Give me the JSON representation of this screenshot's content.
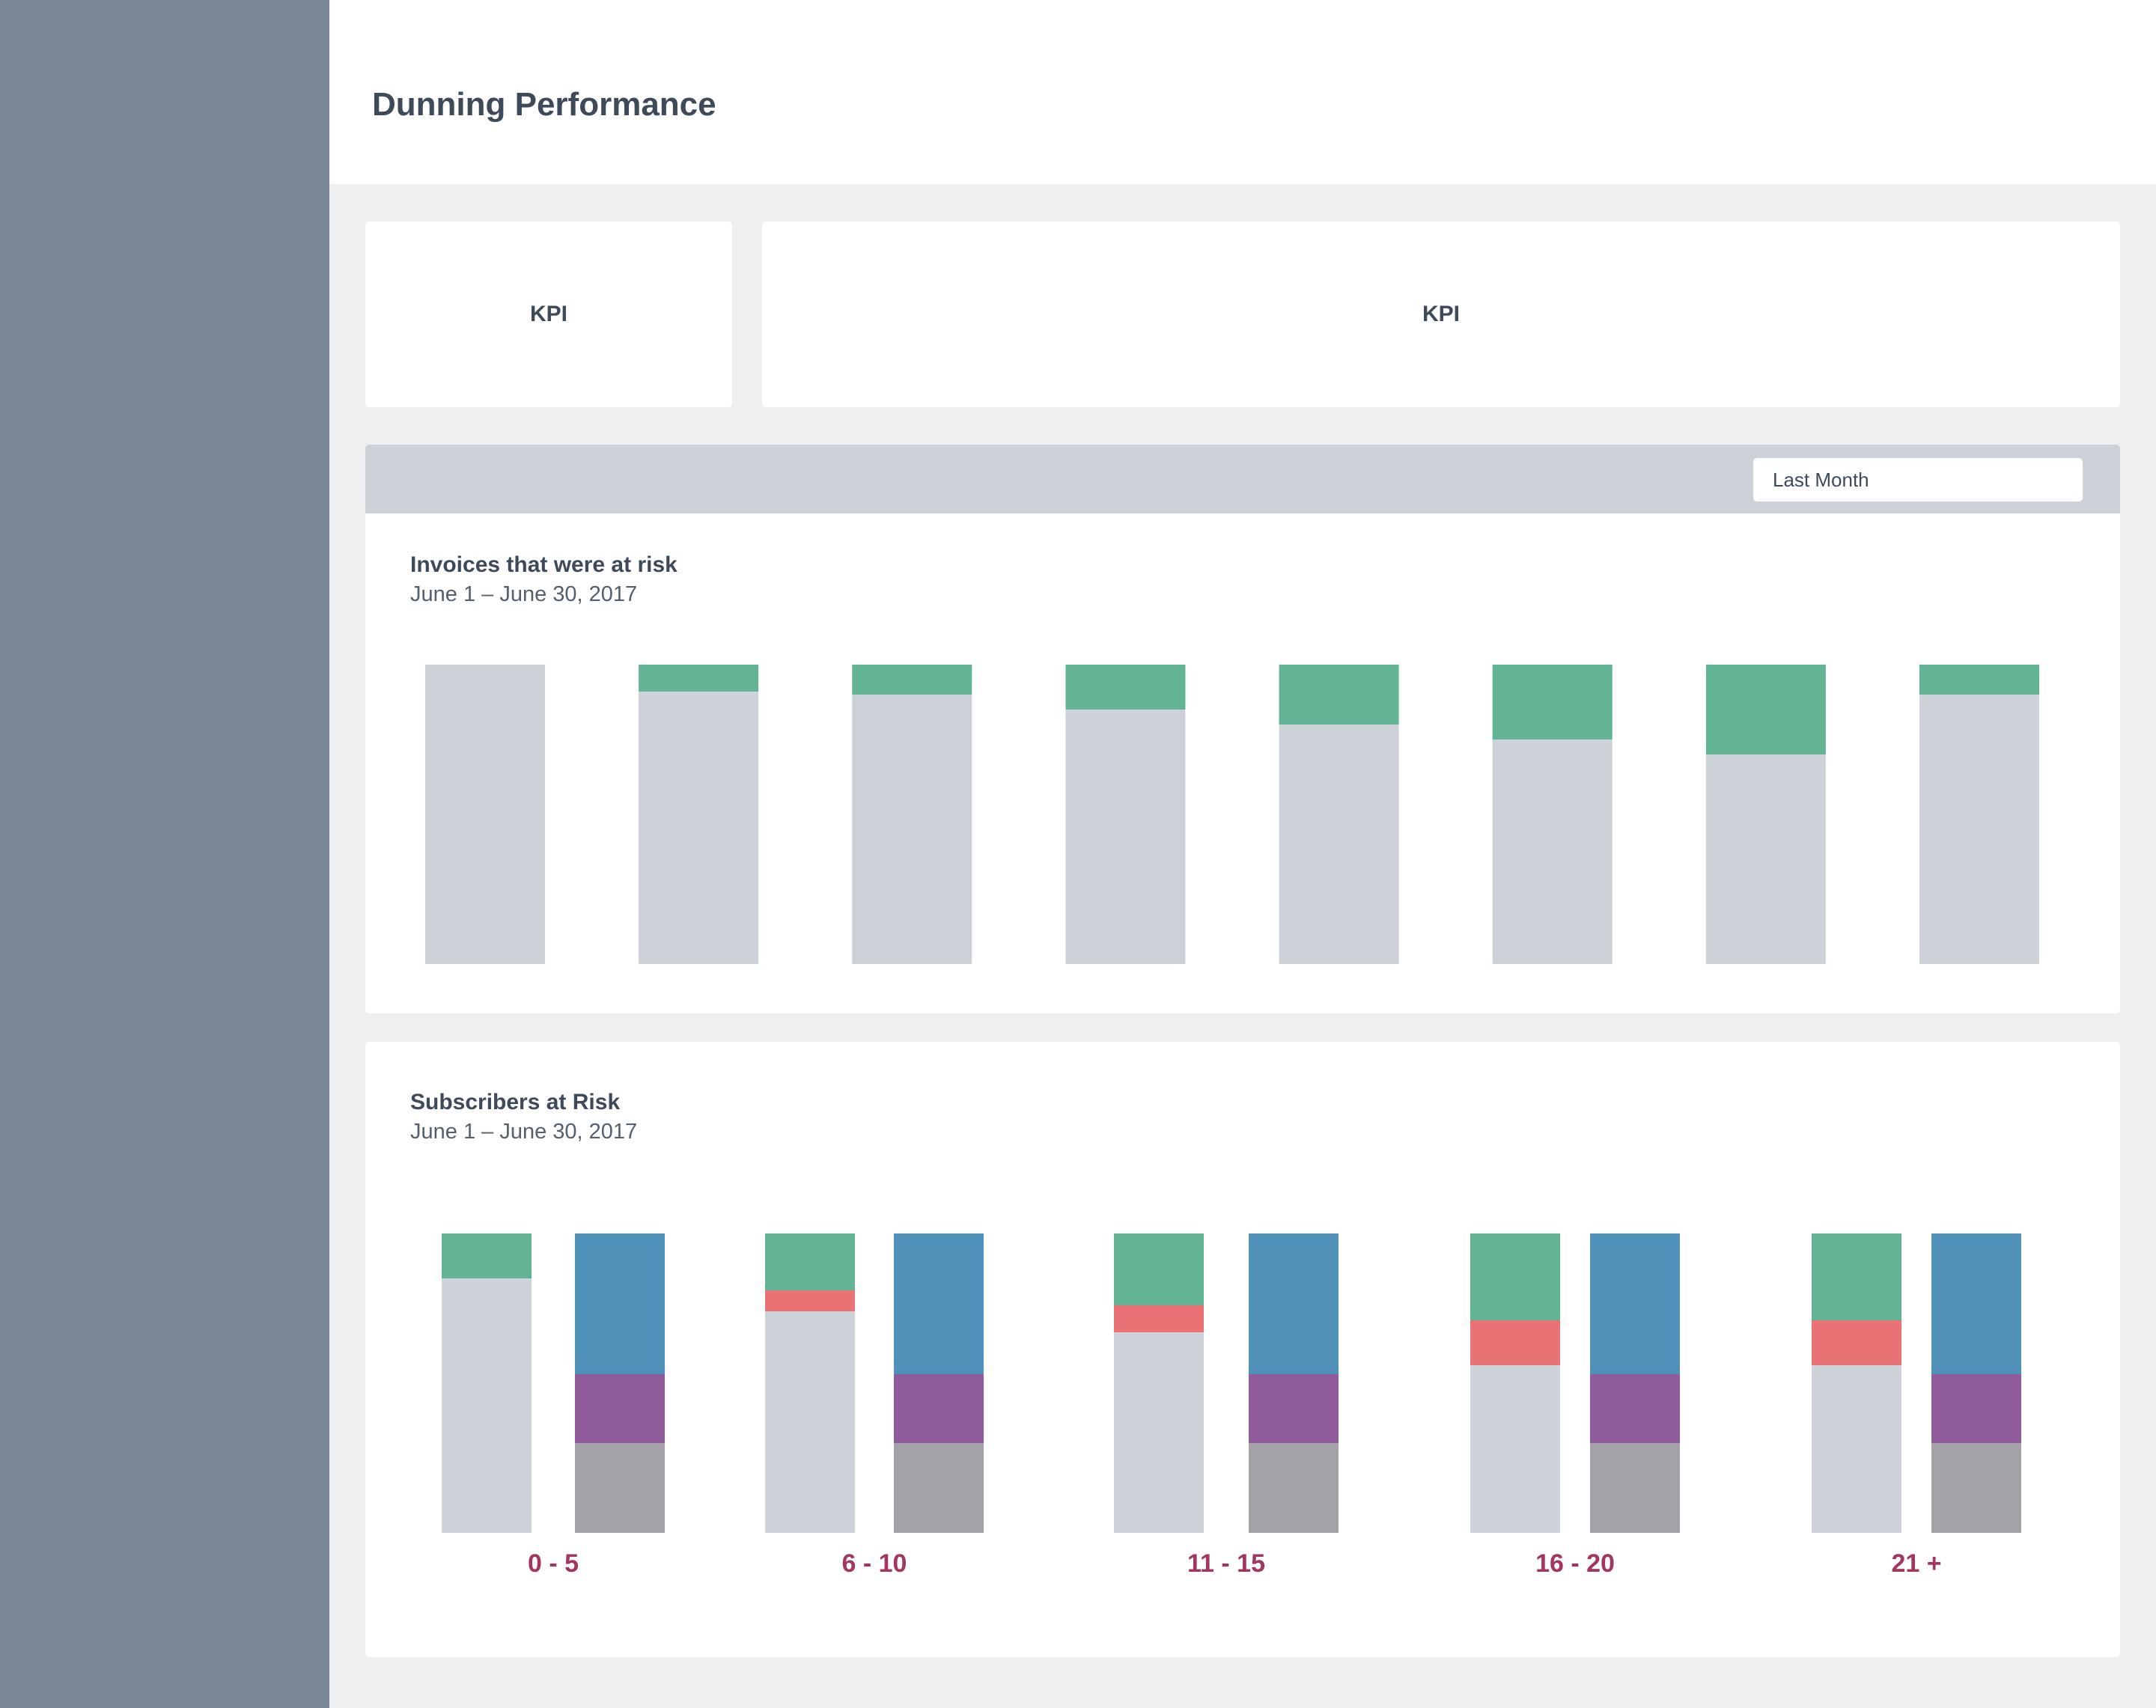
{
  "page": {
    "title": "Dunning Performance"
  },
  "kpis": [
    {
      "label": "KPI"
    },
    {
      "label": "KPI"
    }
  ],
  "filter": {
    "selected": "Last Month"
  },
  "colors": {
    "sidebar": "#798797",
    "background": "#EEEFF1",
    "base": "#CDD2D9",
    "recovered": "#63B395",
    "failed": "#E97274",
    "blue": "#4F91B8",
    "purple": "#8F5B9B",
    "gray": "#A3A3A7",
    "label": "#A3365E"
  },
  "charts": {
    "invoices": {
      "title": "Invoices that were at risk",
      "subtitle": "June 1 – June 30, 2017"
    },
    "subscribers": {
      "title": "Subscribers at Risk",
      "subtitle": "June 1 – June 30, 2017"
    }
  },
  "chart_data": [
    {
      "type": "bar",
      "stacked": true,
      "normalized": true,
      "title": "Invoices that were at risk",
      "subtitle": "June 1 – June 30, 2017",
      "categories": [
        "",
        "",
        "",
        "",
        "",
        "",
        "",
        ""
      ],
      "series": [
        {
          "color": "#CDD2D9",
          "values": [
            1.0,
            0.91,
            0.9,
            0.85,
            0.8,
            0.75,
            0.7,
            0.9
          ]
        },
        {
          "color": "#63B395",
          "values": [
            0.0,
            0.09,
            0.1,
            0.15,
            0.2,
            0.25,
            0.3,
            0.1
          ]
        }
      ],
      "ylim": [
        0,
        1
      ],
      "grid": false
    },
    {
      "type": "bar",
      "stacked": true,
      "normalized": true,
      "title": "Subscribers at Risk",
      "subtitle": "June 1 – June 30, 2017",
      "categories": [
        "0 - 5",
        "6 - 10",
        "11 - 15",
        "16 - 20",
        "21 +"
      ],
      "bars_per_category": 2,
      "left_bar": [
        {
          "color": "#CDD2D9",
          "values": [
            0.85,
            0.74,
            0.67,
            0.56,
            0.56
          ]
        },
        {
          "color": "#E97274",
          "values": [
            0.0,
            0.07,
            0.09,
            0.15,
            0.15
          ]
        },
        {
          "color": "#63B395",
          "values": [
            0.15,
            0.19,
            0.24,
            0.29,
            0.29
          ]
        }
      ],
      "right_bar": [
        {
          "color": "#A3A3A7",
          "values": [
            0.3,
            0.3,
            0.3,
            0.3,
            0.3
          ]
        },
        {
          "color": "#8F5B9B",
          "values": [
            0.23,
            0.23,
            0.23,
            0.23,
            0.23
          ]
        },
        {
          "color": "#4F91B8",
          "values": [
            0.47,
            0.47,
            0.47,
            0.47,
            0.47
          ]
        }
      ],
      "ylim": [
        0,
        1
      ],
      "grid": false
    }
  ]
}
